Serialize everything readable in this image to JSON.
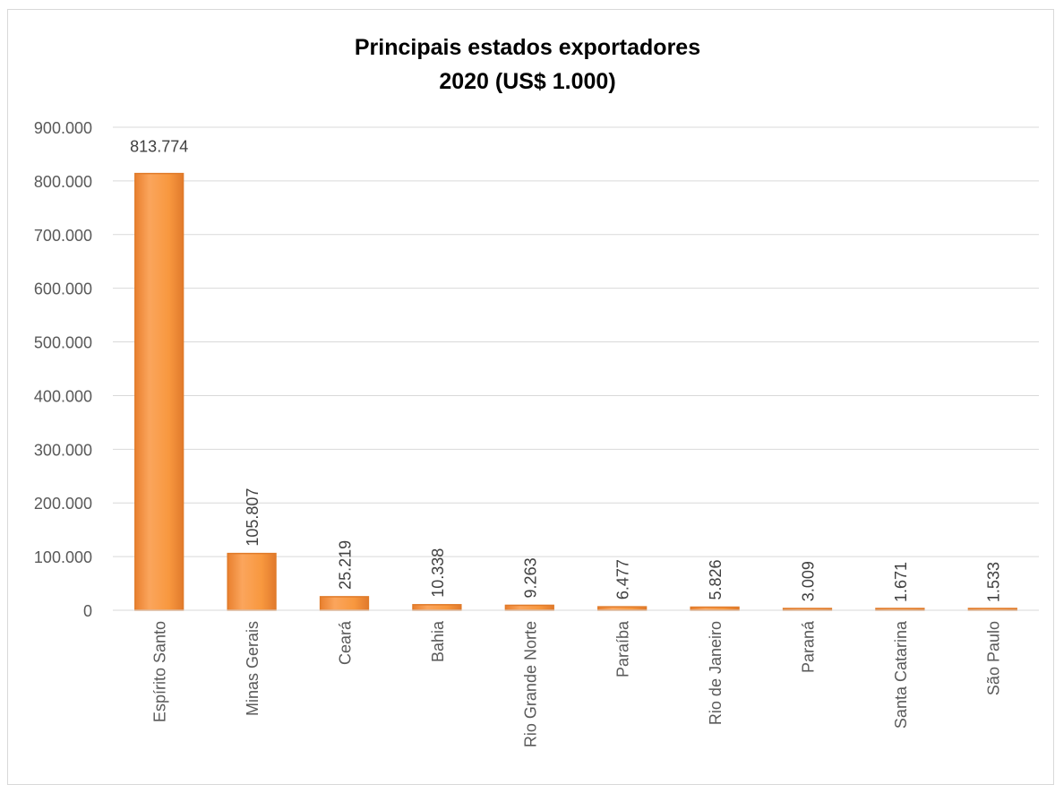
{
  "chart_data": {
    "type": "bar",
    "title_line1": "Principais estados exportadores",
    "title_line2": "2020 (US$ 1.000)",
    "xlabel": "",
    "ylabel": "",
    "ylim": [
      0,
      900000
    ],
    "yticks": [
      0,
      100000,
      200000,
      300000,
      400000,
      500000,
      600000,
      700000,
      800000,
      900000
    ],
    "ytick_labels": [
      "0",
      "100.000",
      "200.000",
      "300.000",
      "400.000",
      "500.000",
      "600.000",
      "700.000",
      "800.000",
      "900.000"
    ],
    "grid": true,
    "bar_color": "#f79646",
    "categories": [
      "Espírito Santo",
      "Minas Gerais",
      "Ceará",
      "Bahia",
      "Rio Grande Norte",
      "Paraíba",
      "Rio de Janeiro",
      "Paraná",
      "Santa Catarina",
      "São Paulo"
    ],
    "values": [
      813774,
      105807,
      25219,
      10338,
      9263,
      6477,
      5826,
      3009,
      1671,
      1533
    ],
    "value_labels": [
      "813.774",
      "105.807",
      "25.219",
      "10.338",
      "9.263",
      "6.477",
      "5.826",
      "3.009",
      "1.671",
      "1.533"
    ]
  }
}
